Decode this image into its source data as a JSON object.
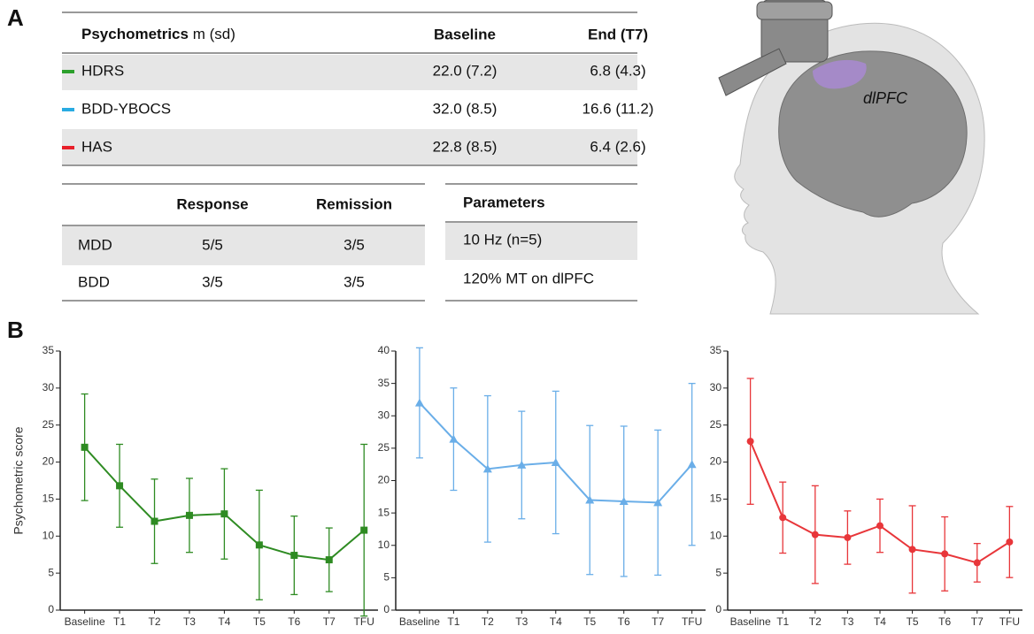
{
  "panel_labels": [
    "A",
    "B"
  ],
  "psychometrics_table": {
    "title": "Psychometrics",
    "title_note": "m (sd)",
    "columns": [
      "Baseline",
      "End (T7)"
    ],
    "rows": [
      {
        "name": "HDRS",
        "color": "#2ca02c",
        "cells": [
          "22.0 (7.2)",
          "6.8 (4.3)"
        ]
      },
      {
        "name": "BDD-YBOCS",
        "color": "#29abe2",
        "cells": [
          "32.0 (8.5)",
          "16.6 (11.2)"
        ]
      },
      {
        "name": "HAS",
        "color": "#e8202a",
        "cells": [
          "22.8 (8.5)",
          "6.4 (2.6)"
        ]
      }
    ]
  },
  "outcome_table": {
    "columns": [
      "Response",
      "Remission"
    ],
    "rows": [
      {
        "label": "MDD",
        "cells": [
          "5/5",
          "3/5"
        ]
      },
      {
        "label": "BDD",
        "cells": [
          "3/5",
          "3/5"
        ]
      }
    ]
  },
  "parameters_table": {
    "title": "Parameters",
    "rows": [
      "10 Hz (n=5)",
      "120% MT on dlPFC"
    ]
  },
  "illustration": {
    "region_label": "dlPFC"
  },
  "chart_data": [
    {
      "type": "line",
      "ylabel": "Psychometric score",
      "categories": [
        "Baseline",
        "T1",
        "T2",
        "T3",
        "T4",
        "T5",
        "T6",
        "T7",
        "TFU"
      ],
      "series": [
        {
          "color": "#2e8b22",
          "marker": "square",
          "values": [
            22.0,
            16.8,
            12.0,
            12.8,
            13.0,
            8.8,
            7.4,
            6.8,
            10.8
          ],
          "errors": [
            7.2,
            5.6,
            5.7,
            5.0,
            6.1,
            7.4,
            5.3,
            4.3,
            11.6
          ]
        }
      ],
      "ylim": [
        0,
        35
      ],
      "yticks": [
        0,
        5,
        10,
        15,
        20,
        25,
        30,
        35
      ]
    },
    {
      "type": "line",
      "categories": [
        "Baseline",
        "T1",
        "T2",
        "T3",
        "T4",
        "T5",
        "T6",
        "T7",
        "TFU"
      ],
      "series": [
        {
          "color": "#6aaee8",
          "marker": "triangle",
          "values": [
            32.0,
            26.4,
            21.8,
            22.4,
            22.8,
            17.0,
            16.8,
            16.6,
            22.5
          ],
          "errors": [
            8.5,
            7.9,
            11.3,
            8.3,
            11.0,
            11.5,
            11.6,
            11.2,
            12.5
          ]
        }
      ],
      "ylim": [
        0,
        40
      ],
      "yticks": [
        0,
        5,
        10,
        15,
        20,
        25,
        30,
        35,
        40
      ]
    },
    {
      "type": "line",
      "categories": [
        "Baseline",
        "T1",
        "T2",
        "T3",
        "T4",
        "T5",
        "T6",
        "T7",
        "TFU"
      ],
      "series": [
        {
          "color": "#e8363a",
          "marker": "circle",
          "values": [
            22.8,
            12.5,
            10.2,
            9.8,
            11.4,
            8.2,
            7.6,
            6.4,
            9.2
          ],
          "errors": [
            8.5,
            4.8,
            6.6,
            3.6,
            3.6,
            5.9,
            5.0,
            2.6,
            4.8
          ]
        }
      ],
      "ylim": [
        0,
        35
      ],
      "yticks": [
        0,
        5,
        10,
        15,
        20,
        25,
        30,
        35
      ]
    }
  ]
}
